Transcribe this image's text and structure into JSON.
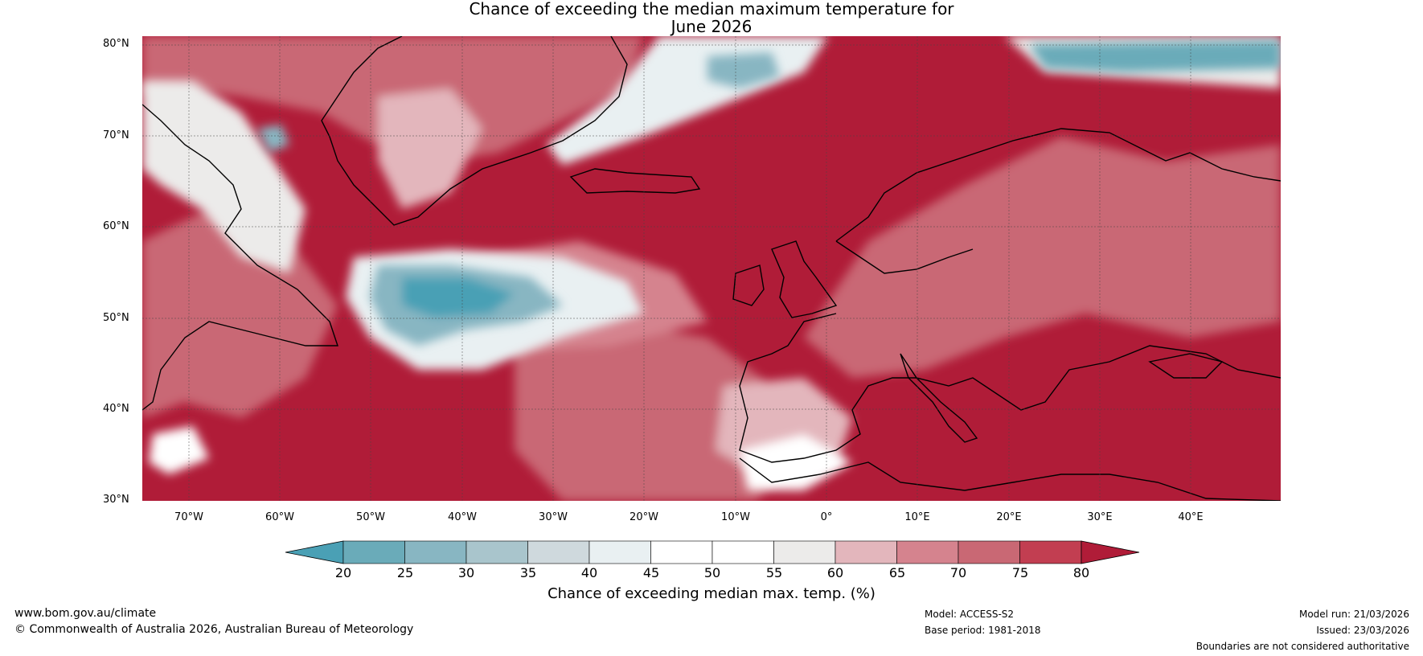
{
  "title_line1": "Chance of exceeding the median maximum temperature for",
  "title_line2": "June 2026",
  "latitude_labels": [
    "80°N",
    "70°N",
    "60°N",
    "50°N",
    "40°N",
    "30°N"
  ],
  "longitude_labels": [
    "70°W",
    "60°W",
    "50°W",
    "40°W",
    "30°W",
    "20°W",
    "10°W",
    "0°",
    "10°E",
    "20°E",
    "30°E",
    "40°E"
  ],
  "colorbar": {
    "ticks": [
      "20",
      "25",
      "30",
      "35",
      "40",
      "45",
      "50",
      "55",
      "60",
      "65",
      "70",
      "75",
      "80"
    ],
    "colors": [
      "#4aa0b5",
      "#6aabb9",
      "#88b6c2",
      "#a9c5cc",
      "#cfd9dd",
      "#e9f0f2",
      "#ffffff",
      "#ffffff",
      "#ecebea",
      "#e3b6bc",
      "#d5838e",
      "#c96874",
      "#c23e51",
      "#b01c38"
    ],
    "label": "Chance of exceeding median max. temp. (%)"
  },
  "footer": {
    "url": "www.bom.gov.au/climate",
    "copyright": "© Commonwealth of Australia 2026, Australian Bureau of Meteorology",
    "model": "Model: ACCESS-S2",
    "base_period": "Base period: 1981-2018",
    "model_run": "Model run: 21/03/2026",
    "issued": "Issued: 23/03/2026",
    "disclaimer": "Boundaries are not considered authoritative"
  }
}
